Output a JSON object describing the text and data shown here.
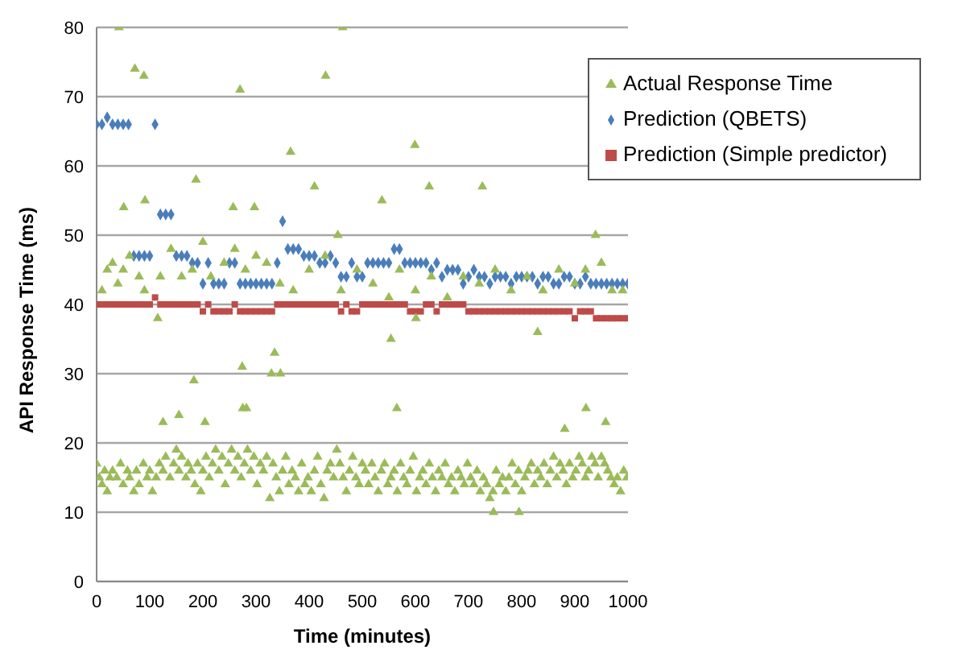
{
  "chart_data": {
    "type": "scatter",
    "xlabel": "Time (minutes)",
    "ylabel": "API Response Time (ms)",
    "xlim": [
      0,
      1000
    ],
    "xticks": [
      0,
      100,
      200,
      300,
      400,
      500,
      600,
      700,
      800,
      900,
      1000
    ],
    "ylim": [
      0,
      80
    ],
    "yticks": [
      0,
      10,
      20,
      30,
      40,
      50,
      60,
      70,
      80
    ],
    "grid": "y",
    "legend": "top right",
    "series": [
      {
        "name": "Prediction (QBETS)",
        "color": "#4a7ebb",
        "marker": "diamond",
        "x": [
          0,
          10,
          20,
          30,
          40,
          50,
          60,
          70,
          80,
          90,
          100,
          110,
          120,
          130,
          140,
          150,
          160,
          170,
          180,
          190,
          200,
          210,
          220,
          230,
          240,
          250,
          260,
          270,
          280,
          290,
          300,
          310,
          320,
          330,
          340,
          350,
          360,
          370,
          380,
          390,
          400,
          410,
          420,
          430,
          440,
          450,
          460,
          470,
          480,
          490,
          500,
          510,
          520,
          530,
          540,
          550,
          560,
          570,
          580,
          590,
          600,
          610,
          620,
          630,
          640,
          650,
          660,
          670,
          680,
          690,
          700,
          710,
          720,
          730,
          740,
          750,
          760,
          770,
          780,
          790,
          800,
          810,
          820,
          830,
          840,
          850,
          860,
          870,
          880,
          890,
          900,
          910,
          920,
          930,
          940,
          950,
          960,
          970,
          980,
          990,
          1000
        ],
        "values": [
          66,
          66,
          67,
          66,
          66,
          66,
          66,
          47,
          47,
          47,
          47,
          66,
          53,
          53,
          53,
          47,
          47,
          47,
          46,
          46,
          43,
          46,
          43,
          43,
          43,
          46,
          46,
          43,
          43,
          43,
          43,
          43,
          43,
          43,
          46,
          52,
          48,
          48,
          48,
          47,
          47,
          47,
          46,
          46,
          47,
          46,
          44,
          44,
          46,
          44,
          44,
          46,
          46,
          46,
          46,
          46,
          48,
          48,
          46,
          46,
          46,
          46,
          46,
          45,
          46,
          44,
          45,
          45,
          45,
          43,
          44,
          45,
          44,
          44,
          43,
          44,
          44,
          44,
          43,
          44,
          44,
          44,
          44,
          43,
          44,
          44,
          43,
          43,
          44,
          44,
          43,
          43,
          44,
          43,
          43,
          43,
          43,
          43,
          43,
          43,
          43
        ]
      },
      {
        "name": "Prediction (Simple predictor)",
        "color": "#be4b48",
        "marker": "square",
        "x": [
          0,
          10,
          20,
          30,
          40,
          50,
          60,
          70,
          80,
          90,
          100,
          110,
          120,
          130,
          140,
          150,
          160,
          170,
          180,
          190,
          200,
          210,
          220,
          230,
          240,
          250,
          260,
          270,
          280,
          290,
          300,
          310,
          320,
          330,
          340,
          350,
          360,
          370,
          380,
          390,
          400,
          410,
          420,
          430,
          440,
          450,
          460,
          470,
          480,
          490,
          500,
          510,
          520,
          530,
          540,
          550,
          560,
          570,
          580,
          590,
          600,
          610,
          620,
          630,
          640,
          650,
          660,
          670,
          680,
          690,
          700,
          710,
          720,
          730,
          740,
          750,
          760,
          770,
          780,
          790,
          800,
          810,
          820,
          830,
          840,
          850,
          860,
          870,
          880,
          890,
          900,
          910,
          920,
          930,
          940,
          950,
          960,
          970,
          980,
          990,
          1000
        ],
        "values": [
          40,
          40,
          40,
          40,
          40,
          40,
          40,
          40,
          40,
          40,
          40,
          41,
          40,
          40,
          40,
          40,
          40,
          40,
          40,
          40,
          39,
          40,
          39,
          39,
          39,
          39,
          40,
          39,
          39,
          39,
          39,
          39,
          39,
          39,
          40,
          40,
          40,
          40,
          40,
          40,
          40,
          40,
          40,
          40,
          40,
          40,
          39,
          40,
          39,
          39,
          40,
          40,
          40,
          40,
          40,
          40,
          40,
          40,
          40,
          39,
          39,
          39,
          40,
          40,
          39,
          40,
          40,
          40,
          40,
          40,
          39,
          39,
          39,
          39,
          39,
          39,
          39,
          39,
          39,
          39,
          39,
          39,
          39,
          39,
          39,
          39,
          39,
          39,
          39,
          39,
          38,
          39,
          39,
          39,
          38,
          38,
          38,
          38,
          38,
          38,
          38
        ]
      },
      {
        "name": "Actual Response Time",
        "color": "#9bbb59",
        "marker": "triangle",
        "x": [
          0,
          5,
          10,
          15,
          20,
          25,
          30,
          38,
          45,
          50,
          58,
          62,
          70,
          75,
          80,
          88,
          95,
          100,
          105,
          112,
          118,
          125,
          130,
          138,
          145,
          150,
          155,
          160,
          168,
          172,
          178,
          185,
          190,
          196,
          200,
          206,
          212,
          218,
          224,
          230,
          236,
          242,
          248,
          254,
          260,
          266,
          272,
          278,
          284,
          290,
          296,
          302,
          308,
          314,
          320,
          326,
          332,
          338,
          344,
          350,
          356,
          362,
          368,
          374,
          380,
          386,
          392,
          398,
          404,
          410,
          416,
          422,
          428,
          434,
          440,
          446,
          452,
          458,
          464,
          470,
          476,
          482,
          488,
          494,
          500,
          506,
          512,
          518,
          524,
          530,
          536,
          542,
          548,
          554,
          560,
          566,
          572,
          578,
          584,
          590,
          596,
          602,
          608,
          614,
          620,
          626,
          632,
          638,
          644,
          650,
          656,
          662,
          668,
          674,
          680,
          686,
          692,
          698,
          704,
          710,
          716,
          722,
          728,
          734,
          740,
          746,
          752,
          758,
          764,
          770,
          776,
          782,
          788,
          794,
          800,
          806,
          812,
          818,
          824,
          830,
          836,
          842,
          848,
          854,
          860,
          866,
          872,
          878,
          884,
          890,
          896,
          902,
          908,
          914,
          920,
          926,
          932,
          938,
          944,
          950,
          956,
          962,
          968,
          974,
          980,
          986,
          992,
          998,
          10,
          20,
          30,
          40,
          50,
          62,
          80,
          90,
          120,
          140,
          160,
          180,
          200,
          215,
          240,
          260,
          280,
          300,
          320,
          345,
          370,
          400,
          430,
          460,
          490,
          520,
          550,
          570,
          600,
          630,
          660,
          690,
          720,
          750,
          780,
          810,
          840,
          870,
          900,
          920,
          950,
          970,
          990,
          42,
          72,
          89,
          270,
          365,
          431,
          463,
          187,
          410,
          51,
          91,
          257,
          297,
          454,
          599,
          626,
          726,
          537,
          939,
          115,
          183,
          335,
          329,
          346,
          274,
          275,
          282,
          125,
          155,
          204,
          601,
          554,
          830,
          565,
          921,
          881,
          958,
          747,
          795
        ],
        "values": [
          17,
          15,
          14,
          16,
          13,
          15,
          16,
          15,
          17,
          14,
          16,
          15,
          13,
          16,
          14,
          17,
          15,
          16,
          13,
          15,
          17,
          16,
          18,
          15,
          17,
          19,
          16,
          18,
          15,
          17,
          16,
          14,
          17,
          13,
          16,
          18,
          15,
          17,
          19,
          16,
          18,
          14,
          17,
          19,
          16,
          18,
          15,
          17,
          19,
          16,
          18,
          14,
          17,
          16,
          18,
          12,
          17,
          15,
          13,
          16,
          18,
          14,
          16,
          15,
          13,
          17,
          14,
          15,
          13,
          16,
          18,
          14,
          12,
          16,
          17,
          15,
          19,
          17,
          15,
          13,
          16,
          18,
          15,
          14,
          17,
          16,
          14,
          17,
          15,
          13,
          16,
          17,
          14,
          15,
          16,
          13,
          17,
          15,
          14,
          16,
          18,
          13,
          15,
          16,
          14,
          17,
          15,
          13,
          16,
          15,
          17,
          14,
          15,
          13,
          16,
          15,
          14,
          17,
          15,
          14,
          16,
          13,
          15,
          14,
          12,
          13,
          16,
          14,
          15,
          13,
          15,
          17,
          14,
          16,
          13,
          15,
          16,
          17,
          14,
          16,
          15,
          17,
          14,
          16,
          18,
          15,
          17,
          16,
          14,
          17,
          15,
          16,
          18,
          17,
          15,
          16,
          18,
          17,
          15,
          18,
          17,
          16,
          15,
          14,
          15,
          13,
          16,
          15,
          42,
          45,
          46,
          43,
          45,
          47,
          44,
          42,
          44,
          48,
          44,
          45,
          49,
          44,
          46,
          48,
          45,
          47,
          46,
          43,
          42,
          45,
          47,
          42,
          45,
          43,
          41,
          45,
          42,
          44,
          41,
          44,
          43,
          45,
          42,
          44,
          42,
          45,
          43,
          45,
          46,
          42,
          42,
          80,
          74,
          73,
          71,
          62,
          73,
          80,
          58,
          57,
          54,
          55,
          54,
          54,
          50,
          63,
          57,
          57,
          55,
          50,
          38,
          29,
          33,
          30,
          30,
          31,
          25,
          25,
          23,
          24,
          23,
          38,
          35,
          36,
          25,
          25,
          22,
          23,
          10,
          10
        ]
      }
    ]
  }
}
